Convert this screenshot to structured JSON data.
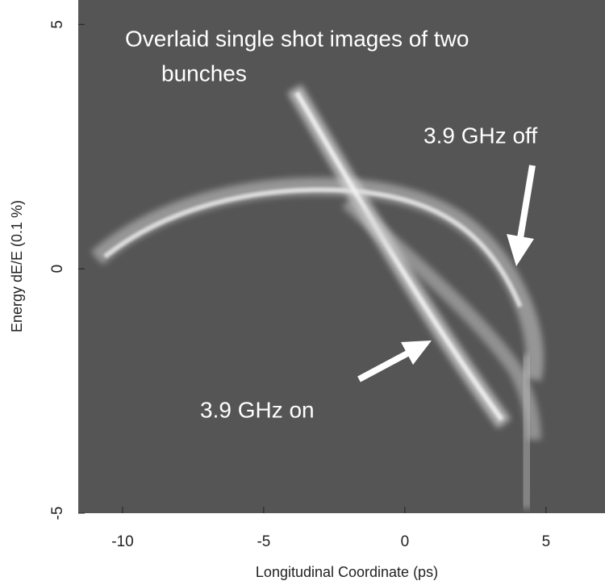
{
  "chart_data": {
    "type": "image",
    "title_lines": [
      "Overlaid single shot images of two",
      "bunches"
    ],
    "xlabel": "Longitudinal Coordinate (ps)",
    "ylabel": "Energy dE/E (0.1 %)",
    "xlim": [
      -11.57,
      7.09
    ],
    "xticks": [
      -10,
      -5,
      0,
      5
    ],
    "ylim": [
      -5,
      5.5
    ],
    "yticks": [
      -5,
      0,
      5
    ],
    "annotations": [
      {
        "text": "3.9 GHz off"
      },
      {
        "text": "3.9 GHz on"
      }
    ],
    "background": "#555555"
  }
}
